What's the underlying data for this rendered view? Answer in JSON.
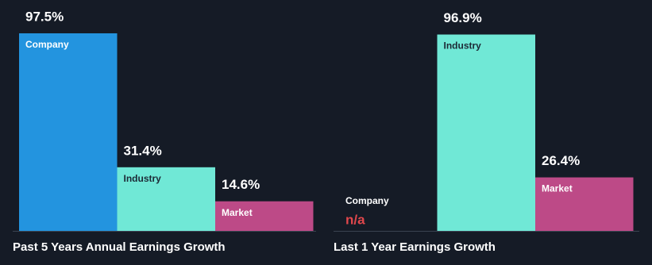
{
  "chart_data": [
    {
      "type": "bar",
      "title": "Past 5 Years Annual Earnings Growth",
      "categories": [
        "Company",
        "Industry",
        "Market"
      ],
      "values": [
        97.5,
        31.4,
        14.6
      ],
      "value_labels": [
        "97.5%",
        "31.4%",
        "14.6%"
      ],
      "colors": [
        "#2394df",
        "#70e8d6",
        "#bd4a87"
      ]
    },
    {
      "type": "bar",
      "title": "Last 1 Year Earnings Growth",
      "categories": [
        "Company",
        "Industry",
        "Market"
      ],
      "values": [
        null,
        96.9,
        26.4
      ],
      "value_labels": [
        "n/a",
        "96.9%",
        "26.4%"
      ],
      "colors": [
        "#2394df",
        "#70e8d6",
        "#bd4a87"
      ]
    }
  ]
}
